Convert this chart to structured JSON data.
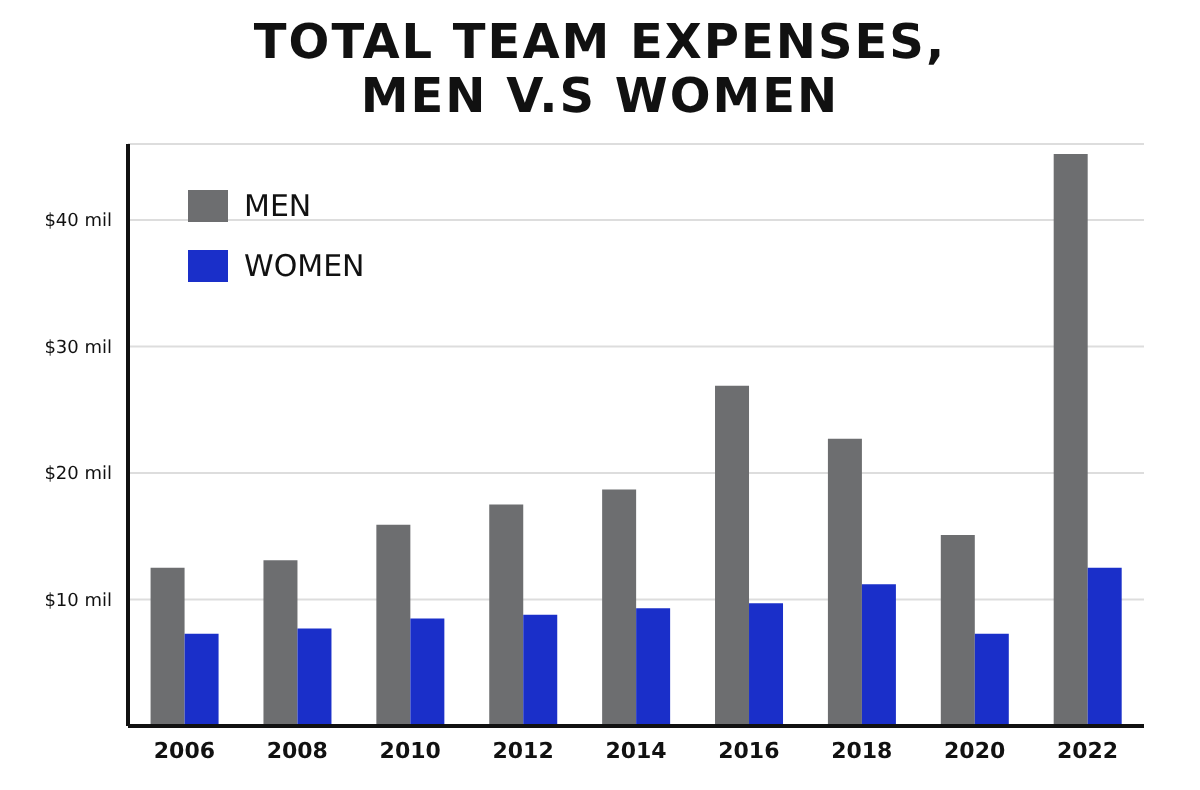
{
  "chart_data": {
    "type": "bar",
    "title": "TOTAL TEAM EXPENSES,\nMEN V.S WOMEN",
    "categories": [
      "2006",
      "2008",
      "2010",
      "2012",
      "2014",
      "2016",
      "2018",
      "2020",
      "2022"
    ],
    "series": [
      {
        "name": "MEN",
        "color": "#6d6e70",
        "values": [
          12.5,
          13.1,
          15.9,
          17.5,
          18.7,
          26.9,
          22.7,
          15.1,
          45.2
        ]
      },
      {
        "name": "WOMEN",
        "color": "#1a2fc9",
        "values": [
          7.3,
          7.7,
          8.5,
          8.8,
          9.3,
          9.7,
          11.2,
          7.3,
          12.5
        ]
      }
    ],
    "ylim": [
      0,
      46
    ],
    "yticks": [
      {
        "value": 10,
        "label": "$10 mil"
      },
      {
        "value": 20,
        "label": "$20 mil"
      },
      {
        "value": 30,
        "label": "$30 mil"
      },
      {
        "value": 40,
        "label": "$40 mil"
      }
    ],
    "grid": "y",
    "legend": "top left"
  }
}
